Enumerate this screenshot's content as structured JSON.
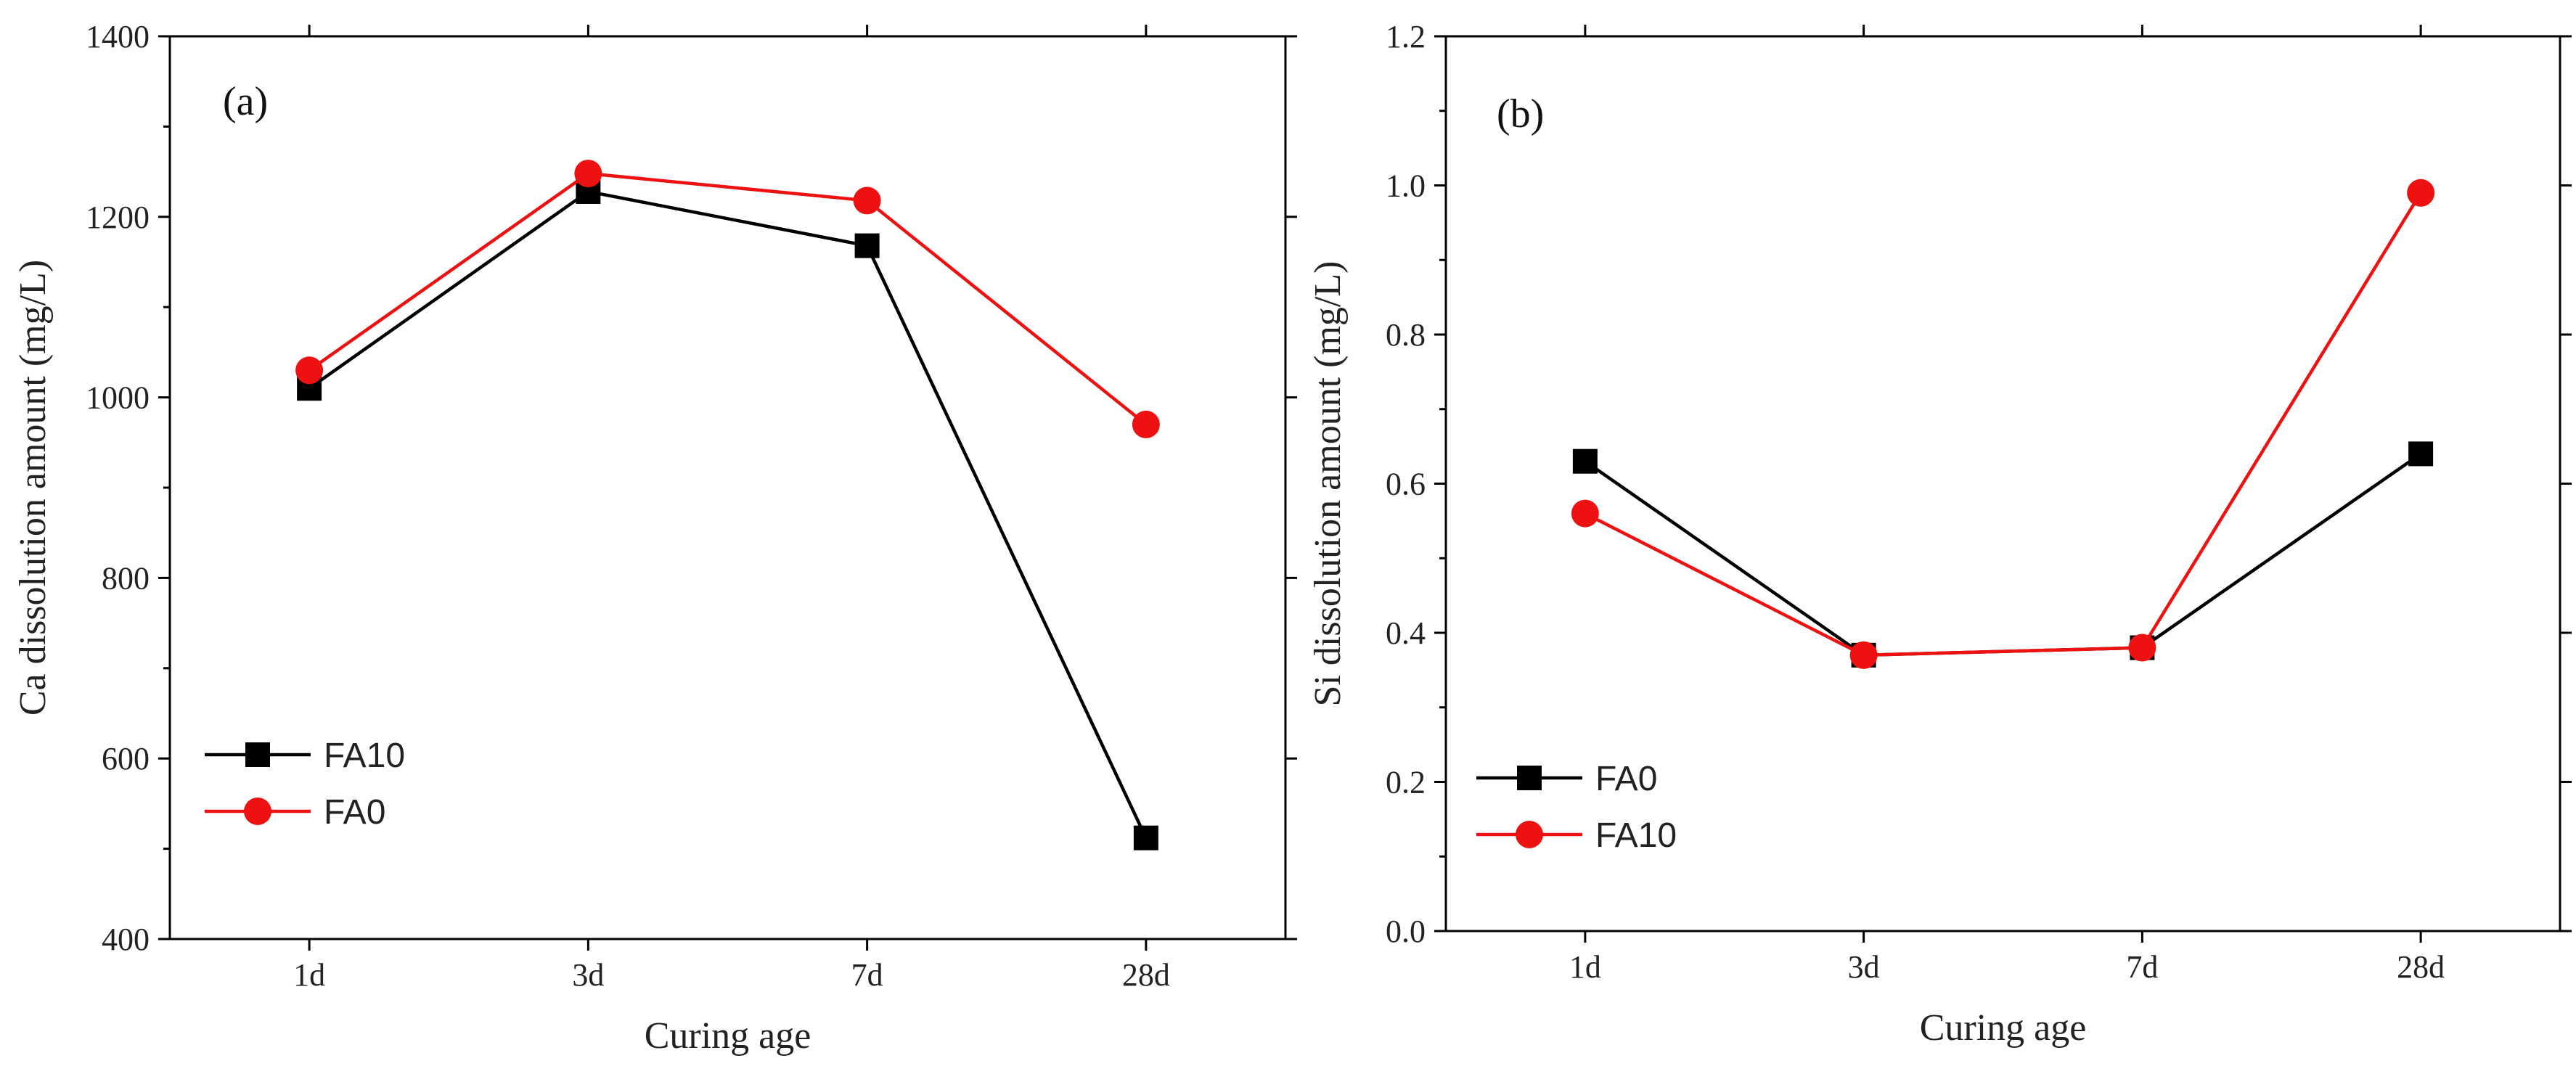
{
  "chart_data": [
    {
      "type": "line",
      "panel_label": "(a)",
      "title": "",
      "xlabel": "Curing age",
      "ylabel": "Ca dissolution amount (mg/L)",
      "categories": [
        "1d",
        "3d",
        "7d",
        "28d"
      ],
      "ylim": [
        400,
        1400
      ],
      "yticks": [
        "400",
        "600",
        "800",
        "1000",
        "1200",
        "1400"
      ],
      "ytick_values": [
        400,
        600,
        800,
        1000,
        1200,
        1400
      ],
      "grid": false,
      "legend_position": "lower-left",
      "series": [
        {
          "name": "FA10",
          "marker": "square",
          "color": "#000000",
          "values": [
            1010,
            1228,
            1168,
            512
          ]
        },
        {
          "name": "FA0",
          "marker": "circle",
          "color": "#ee1111",
          "values": [
            1030,
            1248,
            1218,
            970
          ]
        }
      ]
    },
    {
      "type": "line",
      "panel_label": "(b)",
      "title": "",
      "xlabel": "Curing age",
      "ylabel": "Si dissolution amount (mg/L)",
      "categories": [
        "1d",
        "3d",
        "7d",
        "28d"
      ],
      "ylim": [
        0.0,
        1.2
      ],
      "yticks": [
        "0.0",
        "0.2",
        "0.4",
        "0.6",
        "0.8",
        "1.0",
        "1.2"
      ],
      "ytick_values": [
        0.0,
        0.2,
        0.4,
        0.6,
        0.8,
        1.0,
        1.2
      ],
      "grid": false,
      "legend_position": "lower-left",
      "series": [
        {
          "name": "FA0",
          "marker": "square",
          "color": "#000000",
          "values": [
            0.63,
            0.37,
            0.38,
            0.64
          ]
        },
        {
          "name": "FA10",
          "marker": "circle",
          "color": "#ee1111",
          "values": [
            0.56,
            0.37,
            0.38,
            0.99
          ]
        }
      ]
    }
  ]
}
